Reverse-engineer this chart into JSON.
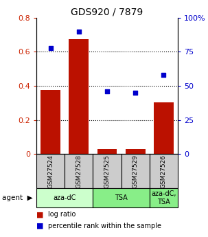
{
  "title": "GDS920 / 7879",
  "samples": [
    "GSM27524",
    "GSM27528",
    "GSM27525",
    "GSM27529",
    "GSM27526"
  ],
  "log_ratio": [
    0.375,
    0.675,
    0.03,
    0.03,
    0.305
  ],
  "percentile_rank_pct": [
    78,
    90,
    46,
    45,
    58
  ],
  "bar_color": "#bb1100",
  "dot_color": "#0000cc",
  "ylim_left": [
    0,
    0.8
  ],
  "ylim_right": [
    0,
    100
  ],
  "yticks_left": [
    0,
    0.2,
    0.4,
    0.6,
    0.8
  ],
  "yticks_right": [
    0,
    25,
    50,
    75,
    100
  ],
  "agent_spans": [
    {
      "label": "aza-dC",
      "start": 0,
      "end": 2,
      "color": "#ccffcc"
    },
    {
      "label": "TSA",
      "start": 2,
      "end": 4,
      "color": "#88ee88"
    },
    {
      "label": "aza-dC,\nTSA",
      "start": 4,
      "end": 5,
      "color": "#88ee88"
    }
  ],
  "legend_bar_label": "log ratio",
  "legend_dot_label": "percentile rank within the sample",
  "background_color": "#ffffff",
  "tick_label_color_left": "#cc2200",
  "tick_label_color_right": "#0000cc",
  "sample_box_color": "#cccccc"
}
